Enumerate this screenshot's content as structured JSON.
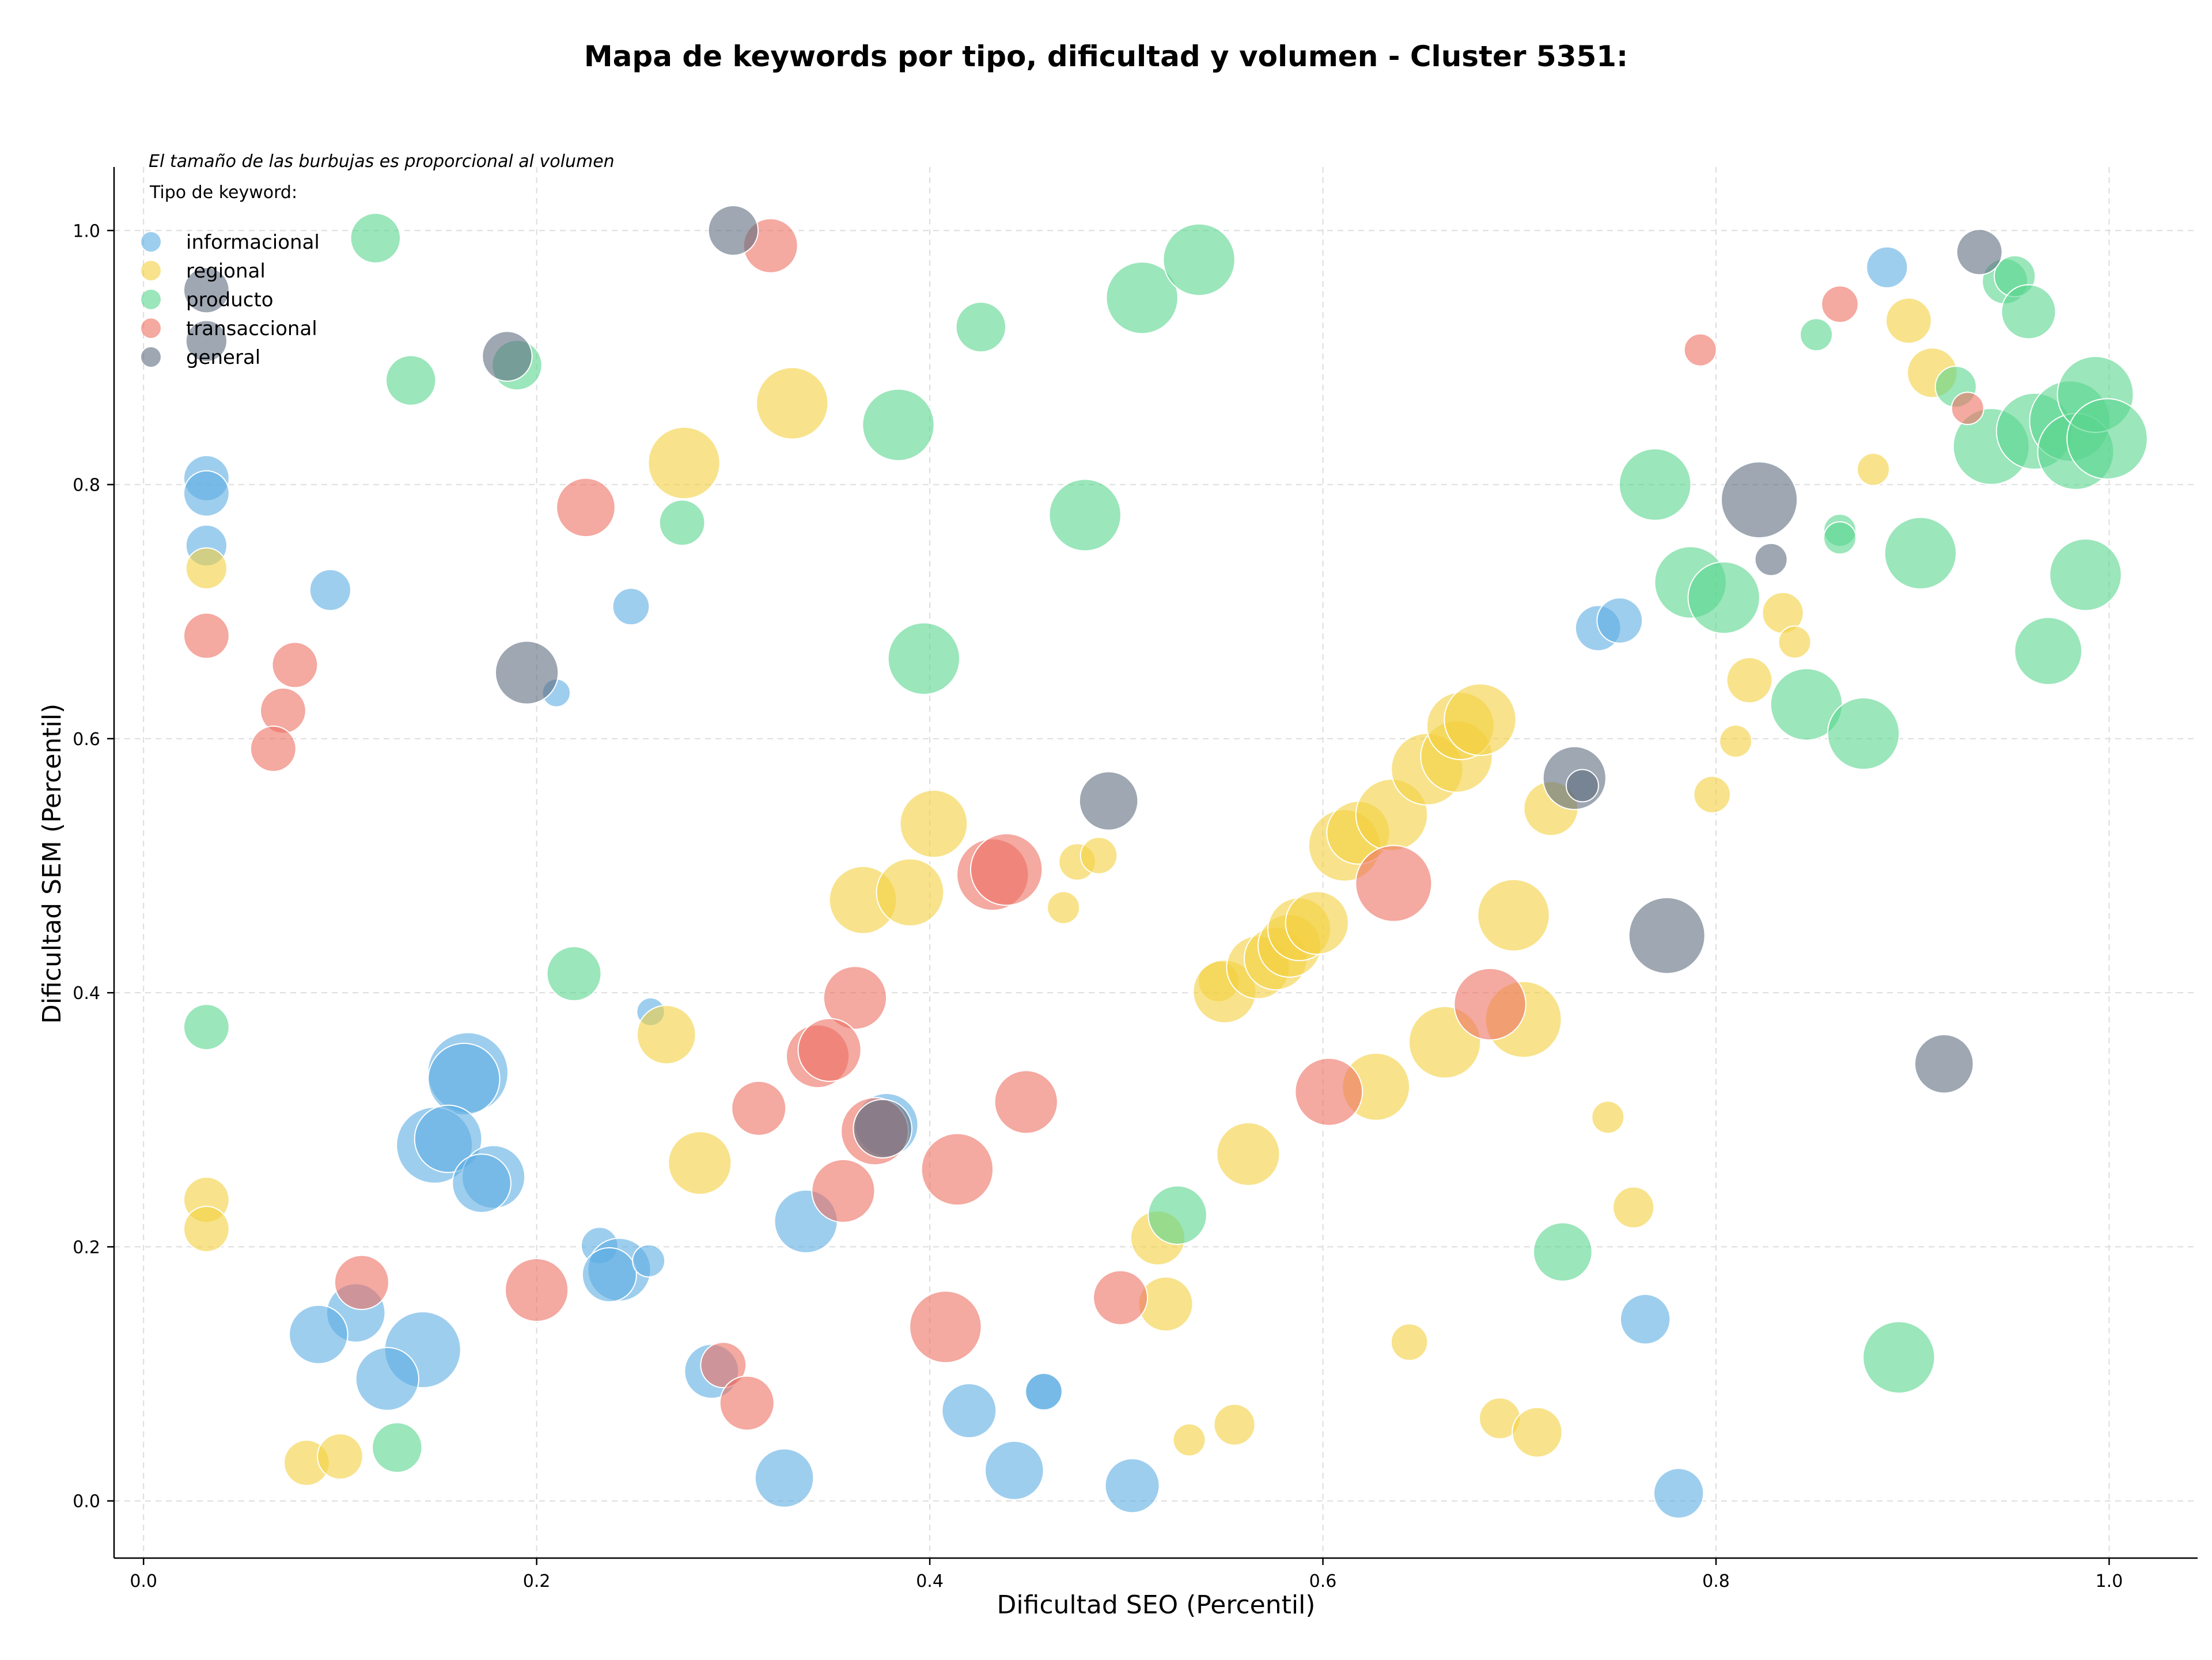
{
  "chart_data": {
    "type": "scatter",
    "title": "Mapa de keywords por tipo, dificultad y volumen - Cluster 5351:",
    "annotation": "El tamaño de las burbujas es proporcional al volumen",
    "xlabel": "Dificultad SEO (Percentil)",
    "ylabel": "Dificultad SEM (Percentil)",
    "xlim": [
      -0.015,
      1.045
    ],
    "ylim": [
      -0.045,
      1.05
    ],
    "xticks": [
      0.0,
      0.2,
      0.4,
      0.6,
      0.8,
      1.0
    ],
    "xtick_labels": [
      "0.0",
      "0.2",
      "0.4",
      "0.6",
      "0.8",
      "1.0"
    ],
    "yticks": [
      0.0,
      0.2,
      0.4,
      0.6,
      0.8,
      1.0
    ],
    "ytick_labels": [
      "0.0",
      "0.2",
      "0.4",
      "0.6",
      "0.8",
      "1.0"
    ],
    "grid": true,
    "legend": {
      "title": "Tipo de keyword:",
      "placement": "top-left"
    },
    "size_note": "bubble radius proportional to volume; s is relative size 1-10",
    "series": [
      {
        "name": "informacional",
        "color": "#5DADE2",
        "points": [
          {
            "x": 0.032,
            "y": 0.805,
            "s": 4
          },
          {
            "x": 0.032,
            "y": 0.793,
            "s": 4
          },
          {
            "x": 0.032,
            "y": 0.752,
            "s": 3.5
          },
          {
            "x": 0.095,
            "y": 0.717,
            "s": 3.5
          },
          {
            "x": 0.248,
            "y": 0.704,
            "s": 3
          },
          {
            "x": 0.21,
            "y": 0.636,
            "s": 2
          },
          {
            "x": 0.258,
            "y": 0.385,
            "s": 2
          },
          {
            "x": 0.165,
            "y": 0.337,
            "s": 8
          },
          {
            "x": 0.163,
            "y": 0.332,
            "s": 7
          },
          {
            "x": 0.148,
            "y": 0.28,
            "s": 7.5
          },
          {
            "x": 0.155,
            "y": 0.285,
            "s": 6.5
          },
          {
            "x": 0.178,
            "y": 0.255,
            "s": 6
          },
          {
            "x": 0.172,
            "y": 0.25,
            "s": 5.5
          },
          {
            "x": 0.378,
            "y": 0.296,
            "s": 6
          },
          {
            "x": 0.337,
            "y": 0.22,
            "s": 6
          },
          {
            "x": 0.232,
            "y": 0.201,
            "s": 3
          },
          {
            "x": 0.242,
            "y": 0.182,
            "s": 6
          },
          {
            "x": 0.237,
            "y": 0.178,
            "s": 5
          },
          {
            "x": 0.257,
            "y": 0.189,
            "s": 2.5
          },
          {
            "x": 0.108,
            "y": 0.148,
            "s": 5.5
          },
          {
            "x": 0.089,
            "y": 0.131,
            "s": 5.5
          },
          {
            "x": 0.142,
            "y": 0.119,
            "s": 7.5
          },
          {
            "x": 0.124,
            "y": 0.096,
            "s": 6
          },
          {
            "x": 0.289,
            "y": 0.102,
            "s": 5
          },
          {
            "x": 0.42,
            "y": 0.071,
            "s": 5
          },
          {
            "x": 0.458,
            "y": 0.086,
            "s": 3
          },
          {
            "x": 0.458,
            "y": 0.086,
            "s": 3
          },
          {
            "x": 0.443,
            "y": 0.024,
            "s": 5.5
          },
          {
            "x": 0.326,
            "y": 0.018,
            "s": 5.5
          },
          {
            "x": 0.503,
            "y": 0.012,
            "s": 5
          },
          {
            "x": 0.781,
            "y": 0.006,
            "s": 4.5
          },
          {
            "x": 0.764,
            "y": 0.143,
            "s": 4.5
          },
          {
            "x": 0.74,
            "y": 0.687,
            "s": 4
          },
          {
            "x": 0.751,
            "y": 0.693,
            "s": 4
          },
          {
            "x": 0.887,
            "y": 0.971,
            "s": 3.5
          }
        ]
      },
      {
        "name": "regional",
        "color": "#F4D03F",
        "points": [
          {
            "x": 0.032,
            "y": 0.734,
            "s": 3.5
          },
          {
            "x": 0.032,
            "y": 0.237,
            "s": 4
          },
          {
            "x": 0.032,
            "y": 0.214,
            "s": 4
          },
          {
            "x": 0.083,
            "y": 0.03,
            "s": 4
          },
          {
            "x": 0.1,
            "y": 0.035,
            "s": 4
          },
          {
            "x": 0.33,
            "y": 0.864,
            "s": 7
          },
          {
            "x": 0.275,
            "y": 0.817,
            "s": 7
          },
          {
            "x": 0.402,
            "y": 0.533,
            "s": 6.5
          },
          {
            "x": 0.366,
            "y": 0.473,
            "s": 6.5
          },
          {
            "x": 0.39,
            "y": 0.479,
            "s": 6.5
          },
          {
            "x": 0.475,
            "y": 0.503,
            "s": 3
          },
          {
            "x": 0.486,
            "y": 0.508,
            "s": 3
          },
          {
            "x": 0.468,
            "y": 0.467,
            "s": 2.5
          },
          {
            "x": 0.266,
            "y": 0.367,
            "s": 5.5
          },
          {
            "x": 0.283,
            "y": 0.266,
            "s": 6
          },
          {
            "x": 0.547,
            "y": 0.409,
            "s": 3.5
          },
          {
            "x": 0.55,
            "y": 0.401,
            "s": 6
          },
          {
            "x": 0.567,
            "y": 0.42,
            "s": 6
          },
          {
            "x": 0.576,
            "y": 0.427,
            "s": 6
          },
          {
            "x": 0.583,
            "y": 0.437,
            "s": 6
          },
          {
            "x": 0.588,
            "y": 0.45,
            "s": 6
          },
          {
            "x": 0.597,
            "y": 0.455,
            "s": 6
          },
          {
            "x": 0.611,
            "y": 0.516,
            "s": 7
          },
          {
            "x": 0.618,
            "y": 0.526,
            "s": 6
          },
          {
            "x": 0.635,
            "y": 0.54,
            "s": 7
          },
          {
            "x": 0.653,
            "y": 0.576,
            "s": 7
          },
          {
            "x": 0.668,
            "y": 0.586,
            "s": 7
          },
          {
            "x": 0.67,
            "y": 0.61,
            "s": 6.5
          },
          {
            "x": 0.68,
            "y": 0.615,
            "s": 7
          },
          {
            "x": 0.697,
            "y": 0.461,
            "s": 7
          },
          {
            "x": 0.702,
            "y": 0.379,
            "s": 7.5
          },
          {
            "x": 0.662,
            "y": 0.361,
            "s": 7
          },
          {
            "x": 0.627,
            "y": 0.326,
            "s": 6.5
          },
          {
            "x": 0.562,
            "y": 0.273,
            "s": 6
          },
          {
            "x": 0.516,
            "y": 0.207,
            "s": 5
          },
          {
            "x": 0.52,
            "y": 0.155,
            "s": 5
          },
          {
            "x": 0.716,
            "y": 0.545,
            "s": 5
          },
          {
            "x": 0.745,
            "y": 0.302,
            "s": 2.5
          },
          {
            "x": 0.758,
            "y": 0.231,
            "s": 3.5
          },
          {
            "x": 0.644,
            "y": 0.125,
            "s": 3
          },
          {
            "x": 0.555,
            "y": 0.06,
            "s": 3.5
          },
          {
            "x": 0.532,
            "y": 0.048,
            "s": 2.5
          },
          {
            "x": 0.69,
            "y": 0.065,
            "s": 3.5
          },
          {
            "x": 0.709,
            "y": 0.054,
            "s": 4.5
          },
          {
            "x": 0.798,
            "y": 0.556,
            "s": 3
          },
          {
            "x": 0.81,
            "y": 0.598,
            "s": 2.5
          },
          {
            "x": 0.817,
            "y": 0.646,
            "s": 4
          },
          {
            "x": 0.834,
            "y": 0.699,
            "s": 3.5
          },
          {
            "x": 0.84,
            "y": 0.676,
            "s": 2.5
          },
          {
            "x": 0.88,
            "y": 0.812,
            "s": 2.5
          },
          {
            "x": 0.898,
            "y": 0.929,
            "s": 4
          },
          {
            "x": 0.91,
            "y": 0.888,
            "s": 4.5
          }
        ]
      },
      {
        "name": "producto",
        "color": "#58D68D",
        "points": [
          {
            "x": 0.118,
            "y": 0.994,
            "s": 4.5
          },
          {
            "x": 0.136,
            "y": 0.882,
            "s": 4.5
          },
          {
            "x": 0.19,
            "y": 0.894,
            "s": 4.5
          },
          {
            "x": 0.274,
            "y": 0.77,
            "s": 4
          },
          {
            "x": 0.426,
            "y": 0.924,
            "s": 4.5
          },
          {
            "x": 0.384,
            "y": 0.847,
            "s": 7
          },
          {
            "x": 0.508,
            "y": 0.947,
            "s": 7
          },
          {
            "x": 0.537,
            "y": 0.977,
            "s": 7
          },
          {
            "x": 0.479,
            "y": 0.776,
            "s": 7
          },
          {
            "x": 0.397,
            "y": 0.663,
            "s": 7
          },
          {
            "x": 0.219,
            "y": 0.415,
            "s": 5
          },
          {
            "x": 0.032,
            "y": 0.373,
            "s": 4
          },
          {
            "x": 0.129,
            "y": 0.042,
            "s": 4.5
          },
          {
            "x": 0.526,
            "y": 0.225,
            "s": 5.5
          },
          {
            "x": 0.722,
            "y": 0.196,
            "s": 5.5
          },
          {
            "x": 0.769,
            "y": 0.8,
            "s": 7
          },
          {
            "x": 0.787,
            "y": 0.723,
            "s": 7
          },
          {
            "x": 0.804,
            "y": 0.711,
            "s": 7
          },
          {
            "x": 0.846,
            "y": 0.627,
            "s": 7
          },
          {
            "x": 0.875,
            "y": 0.604,
            "s": 7
          },
          {
            "x": 0.904,
            "y": 0.746,
            "s": 7
          },
          {
            "x": 0.893,
            "y": 0.113,
            "s": 7
          },
          {
            "x": 0.851,
            "y": 0.918,
            "s": 2.5
          },
          {
            "x": 0.863,
            "y": 0.764,
            "s": 2.5
          },
          {
            "x": 0.863,
            "y": 0.758,
            "s": 2.5
          },
          {
            "x": 0.922,
            "y": 0.877,
            "s": 3.5
          },
          {
            "x": 0.947,
            "y": 0.96,
            "s": 4
          },
          {
            "x": 0.952,
            "y": 0.964,
            "s": 3.5
          },
          {
            "x": 0.959,
            "y": 0.936,
            "s": 5
          },
          {
            "x": 0.94,
            "y": 0.83,
            "s": 7.5
          },
          {
            "x": 0.962,
            "y": 0.842,
            "s": 7.5
          },
          {
            "x": 0.98,
            "y": 0.85,
            "s": 8
          },
          {
            "x": 0.983,
            "y": 0.826,
            "s": 7.5
          },
          {
            "x": 0.993,
            "y": 0.871,
            "s": 7.5
          },
          {
            "x": 0.999,
            "y": 0.836,
            "s": 8
          },
          {
            "x": 0.988,
            "y": 0.729,
            "s": 7
          },
          {
            "x": 0.969,
            "y": 0.669,
            "s": 6.5
          }
        ]
      },
      {
        "name": "transaccional",
        "color": "#EC7063",
        "points": [
          {
            "x": 0.032,
            "y": 0.681,
            "s": 4
          },
          {
            "x": 0.077,
            "y": 0.658,
            "s": 4
          },
          {
            "x": 0.071,
            "y": 0.622,
            "s": 4
          },
          {
            "x": 0.066,
            "y": 0.592,
            "s": 4
          },
          {
            "x": 0.225,
            "y": 0.782,
            "s": 5.5
          },
          {
            "x": 0.319,
            "y": 0.988,
            "s": 5
          },
          {
            "x": 0.432,
            "y": 0.493,
            "s": 7
          },
          {
            "x": 0.439,
            "y": 0.497,
            "s": 7
          },
          {
            "x": 0.362,
            "y": 0.396,
            "s": 6
          },
          {
            "x": 0.343,
            "y": 0.35,
            "s": 6
          },
          {
            "x": 0.349,
            "y": 0.355,
            "s": 6
          },
          {
            "x": 0.313,
            "y": 0.309,
            "s": 5
          },
          {
            "x": 0.372,
            "y": 0.291,
            "s": 6.5
          },
          {
            "x": 0.356,
            "y": 0.244,
            "s": 6
          },
          {
            "x": 0.414,
            "y": 0.261,
            "s": 7
          },
          {
            "x": 0.449,
            "y": 0.314,
            "s": 6
          },
          {
            "x": 0.408,
            "y": 0.137,
            "s": 7
          },
          {
            "x": 0.2,
            "y": 0.166,
            "s": 6
          },
          {
            "x": 0.111,
            "y": 0.172,
            "s": 5
          },
          {
            "x": 0.295,
            "y": 0.107,
            "s": 4
          },
          {
            "x": 0.307,
            "y": 0.077,
            "s": 5
          },
          {
            "x": 0.497,
            "y": 0.16,
            "s": 5
          },
          {
            "x": 0.603,
            "y": 0.322,
            "s": 6.5
          },
          {
            "x": 0.636,
            "y": 0.486,
            "s": 7.5
          },
          {
            "x": 0.685,
            "y": 0.391,
            "s": 7
          },
          {
            "x": 0.792,
            "y": 0.906,
            "s": 2.5
          },
          {
            "x": 0.863,
            "y": 0.942,
            "s": 3
          },
          {
            "x": 0.928,
            "y": 0.86,
            "s": 2.5
          }
        ]
      },
      {
        "name": "general",
        "color": "#5D6D7E",
        "points": [
          {
            "x": 0.032,
            "y": 0.953,
            "s": 4
          },
          {
            "x": 0.032,
            "y": 0.913,
            "s": 3.5
          },
          {
            "x": 0.185,
            "y": 0.901,
            "s": 4.5
          },
          {
            "x": 0.3,
            "y": 1.0,
            "s": 4.5
          },
          {
            "x": 0.195,
            "y": 0.652,
            "s": 6
          },
          {
            "x": 0.491,
            "y": 0.551,
            "s": 5.5
          },
          {
            "x": 0.728,
            "y": 0.569,
            "s": 6
          },
          {
            "x": 0.732,
            "y": 0.563,
            "s": 2.5
          },
          {
            "x": 0.775,
            "y": 0.445,
            "s": 7.5
          },
          {
            "x": 0.822,
            "y": 0.788,
            "s": 7.5
          },
          {
            "x": 0.828,
            "y": 0.741,
            "s": 2.5
          },
          {
            "x": 0.916,
            "y": 0.344,
            "s": 5.5
          },
          {
            "x": 0.934,
            "y": 0.983,
            "s": 4
          },
          {
            "x": 0.376,
            "y": 0.293,
            "s": 5.5
          }
        ]
      }
    ]
  }
}
